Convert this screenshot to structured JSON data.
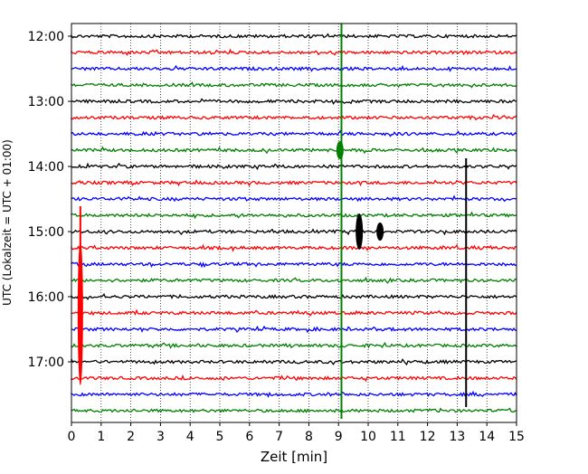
{
  "chart_data": {
    "type": "line",
    "title": "",
    "xlabel": "Zeit  [min]",
    "ylabel": "UTC (Lokalzeit = UTC + 01:00)",
    "xlim": [
      0,
      15
    ],
    "x_ticks": [
      "0",
      "1",
      "2",
      "3",
      "4",
      "5",
      "6",
      "7",
      "8",
      "9",
      "10",
      "11",
      "12",
      "13",
      "14",
      "15"
    ],
    "y_ticks": [
      "12:00",
      "13:00",
      "14:00",
      "15:00",
      "16:00",
      "17:00"
    ],
    "grid": "vertical dotted at each minute",
    "legend": "none",
    "trace_interval_minutes": 15,
    "trace_start": "12:00",
    "trace_end": "17:45",
    "trace_count": 24,
    "color_cycle": [
      "#000000",
      "#ff0000",
      "#0000ff",
      "#008000"
    ],
    "events": [
      {
        "trace_start": "12:00",
        "minute": 9.1,
        "color": "#008000",
        "type": "long vertical spike through all traces"
      },
      {
        "trace_start": "13:45",
        "minute": 9.05,
        "color": "#008000",
        "type": "small burst"
      },
      {
        "trace_start": "15:00",
        "minute": 9.7,
        "color": "#000000",
        "type": "burst"
      },
      {
        "trace_start": "15:00",
        "minute": 10.4,
        "color": "#000000",
        "type": "small burst"
      },
      {
        "trace_start": "16:15",
        "minute": 0.3,
        "color": "#ff0000",
        "type": "large local burst"
      },
      {
        "trace_start": "14:00",
        "minute": 13.3,
        "color": "#000000",
        "type": "long vertical spike"
      }
    ]
  }
}
